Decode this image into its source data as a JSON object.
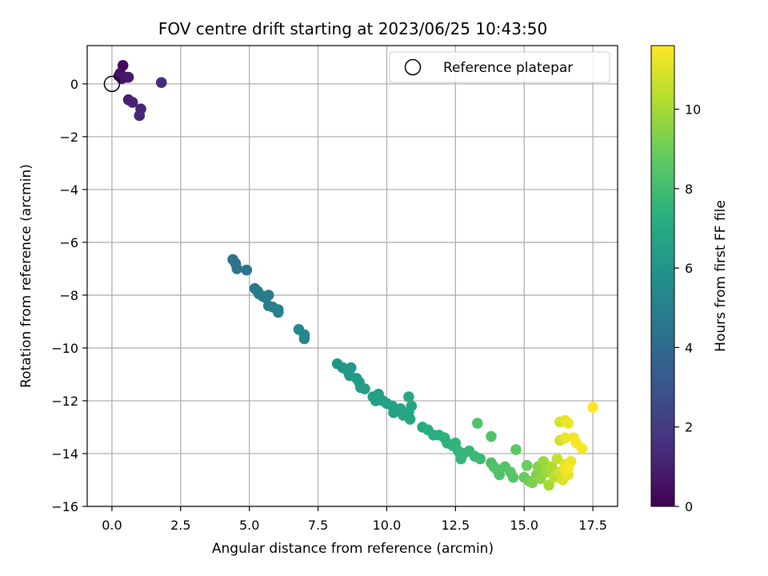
{
  "chart_data": {
    "type": "scatter",
    "title": "FOV centre drift starting at 2023/06/25 10:43:50",
    "xlabel": "Angular distance from reference (arcmin)",
    "ylabel": "Rotation from reference (arcmin)",
    "xlim": [
      -0.9,
      18.4
    ],
    "ylim": [
      -16,
      1.45
    ],
    "xticks": [
      0.0,
      2.5,
      5.0,
      7.5,
      10.0,
      12.5,
      15.0,
      17.5
    ],
    "xtick_labels": [
      "0.0",
      "2.5",
      "5.0",
      "7.5",
      "10.0",
      "12.5",
      "15.0",
      "17.5"
    ],
    "yticks": [
      0,
      -2,
      -4,
      -6,
      -8,
      -10,
      -12,
      -14,
      -16
    ],
    "ytick_labels": [
      "0",
      "−2",
      "−4",
      "−6",
      "−8",
      "−10",
      "−12",
      "−14",
      "−16"
    ],
    "grid": true,
    "legend": {
      "placement": "top-right",
      "entries": [
        "Reference platepar"
      ]
    },
    "reference_point": {
      "x": 0.0,
      "y": 0.0
    },
    "colorbar": {
      "label": "Hours from first FF file",
      "colormap": "viridis",
      "range": [
        0,
        11.6
      ],
      "ticks": [
        0,
        2,
        4,
        6,
        8,
        10
      ],
      "tick_labels": [
        "0",
        "2",
        "4",
        "6",
        "8",
        "10"
      ]
    },
    "points": [
      {
        "x": 0.4,
        "y": 0.7,
        "t": 0.3
      },
      {
        "x": 0.3,
        "y": 0.4,
        "t": 0.4
      },
      {
        "x": 0.25,
        "y": 0.3,
        "t": 0.5
      },
      {
        "x": 0.5,
        "y": 0.25,
        "t": 0.6
      },
      {
        "x": 0.35,
        "y": 0.2,
        "t": 0.7
      },
      {
        "x": 0.6,
        "y": 0.25,
        "t": 0.8
      },
      {
        "x": 0.6,
        "y": -0.6,
        "t": 1.0
      },
      {
        "x": 0.75,
        "y": -0.7,
        "t": 1.1
      },
      {
        "x": 1.05,
        "y": -0.95,
        "t": 1.2
      },
      {
        "x": 1.0,
        "y": -1.2,
        "t": 1.3
      },
      {
        "x": 1.8,
        "y": 0.05,
        "t": 1.5
      },
      {
        "x": 4.4,
        "y": -6.65,
        "t": 4.3
      },
      {
        "x": 4.5,
        "y": -6.8,
        "t": 4.35
      },
      {
        "x": 4.55,
        "y": -7.0,
        "t": 4.4
      },
      {
        "x": 4.9,
        "y": -7.05,
        "t": 4.5
      },
      {
        "x": 5.2,
        "y": -7.75,
        "t": 4.6
      },
      {
        "x": 5.3,
        "y": -7.85,
        "t": 4.65
      },
      {
        "x": 5.35,
        "y": -7.95,
        "t": 4.7
      },
      {
        "x": 5.5,
        "y": -8.05,
        "t": 4.75
      },
      {
        "x": 5.6,
        "y": -8.1,
        "t": 4.8
      },
      {
        "x": 5.7,
        "y": -8.0,
        "t": 4.85
      },
      {
        "x": 5.7,
        "y": -8.4,
        "t": 4.9
      },
      {
        "x": 5.85,
        "y": -8.45,
        "t": 4.95
      },
      {
        "x": 6.05,
        "y": -8.55,
        "t": 5.0
      },
      {
        "x": 6.05,
        "y": -8.65,
        "t": 5.05
      },
      {
        "x": 6.8,
        "y": -9.3,
        "t": 5.3
      },
      {
        "x": 7.0,
        "y": -9.5,
        "t": 5.35
      },
      {
        "x": 7.0,
        "y": -9.65,
        "t": 5.4
      },
      {
        "x": 8.2,
        "y": -10.6,
        "t": 6.0
      },
      {
        "x": 8.4,
        "y": -10.75,
        "t": 6.05
      },
      {
        "x": 8.6,
        "y": -10.9,
        "t": 6.1
      },
      {
        "x": 8.7,
        "y": -10.75,
        "t": 6.1
      },
      {
        "x": 8.65,
        "y": -11.05,
        "t": 6.15
      },
      {
        "x": 8.9,
        "y": -11.15,
        "t": 6.2
      },
      {
        "x": 9.0,
        "y": -11.3,
        "t": 6.25
      },
      {
        "x": 9.05,
        "y": -11.5,
        "t": 6.3
      },
      {
        "x": 9.2,
        "y": -11.55,
        "t": 6.35
      },
      {
        "x": 9.5,
        "y": -11.85,
        "t": 6.4
      },
      {
        "x": 9.6,
        "y": -12.0,
        "t": 6.45
      },
      {
        "x": 9.7,
        "y": -11.75,
        "t": 6.5
      },
      {
        "x": 9.85,
        "y": -12.0,
        "t": 6.5
      },
      {
        "x": 10.0,
        "y": -12.1,
        "t": 6.55
      },
      {
        "x": 10.2,
        "y": -12.2,
        "t": 6.6
      },
      {
        "x": 10.25,
        "y": -12.45,
        "t": 6.65
      },
      {
        "x": 10.5,
        "y": -12.3,
        "t": 6.7
      },
      {
        "x": 10.6,
        "y": -12.55,
        "t": 6.75
      },
      {
        "x": 10.8,
        "y": -12.45,
        "t": 6.8
      },
      {
        "x": 10.85,
        "y": -12.7,
        "t": 6.85
      },
      {
        "x": 10.9,
        "y": -12.2,
        "t": 6.9
      },
      {
        "x": 10.8,
        "y": -11.85,
        "t": 6.95
      },
      {
        "x": 11.3,
        "y": -13.0,
        "t": 7.1
      },
      {
        "x": 11.5,
        "y": -13.1,
        "t": 7.15
      },
      {
        "x": 11.7,
        "y": -13.3,
        "t": 7.2
      },
      {
        "x": 11.9,
        "y": -13.3,
        "t": 7.3
      },
      {
        "x": 12.1,
        "y": -13.4,
        "t": 7.35
      },
      {
        "x": 12.2,
        "y": -13.6,
        "t": 7.4
      },
      {
        "x": 12.4,
        "y": -13.7,
        "t": 7.45
      },
      {
        "x": 12.5,
        "y": -13.6,
        "t": 7.5
      },
      {
        "x": 12.6,
        "y": -13.9,
        "t": 7.55
      },
      {
        "x": 12.8,
        "y": -14.0,
        "t": 7.6
      },
      {
        "x": 12.7,
        "y": -14.2,
        "t": 7.65
      },
      {
        "x": 13.0,
        "y": -13.9,
        "t": 7.7
      },
      {
        "x": 13.2,
        "y": -14.1,
        "t": 7.75
      },
      {
        "x": 13.4,
        "y": -14.2,
        "t": 7.8
      },
      {
        "x": 13.3,
        "y": -12.85,
        "t": 8.3
      },
      {
        "x": 13.8,
        "y": -13.35,
        "t": 8.35
      },
      {
        "x": 13.8,
        "y": -14.35,
        "t": 8.2
      },
      {
        "x": 13.9,
        "y": -14.5,
        "t": 8.25
      },
      {
        "x": 14.0,
        "y": -14.6,
        "t": 8.3
      },
      {
        "x": 14.1,
        "y": -14.8,
        "t": 8.35
      },
      {
        "x": 14.3,
        "y": -14.5,
        "t": 8.4
      },
      {
        "x": 14.5,
        "y": -14.7,
        "t": 8.45
      },
      {
        "x": 14.6,
        "y": -14.9,
        "t": 8.5
      },
      {
        "x": 14.7,
        "y": -13.85,
        "t": 8.6
      },
      {
        "x": 15.0,
        "y": -14.9,
        "t": 8.8
      },
      {
        "x": 15.1,
        "y": -14.45,
        "t": 8.9
      },
      {
        "x": 15.2,
        "y": -15.05,
        "t": 9.0
      },
      {
        "x": 15.3,
        "y": -15.1,
        "t": 9.2
      },
      {
        "x": 15.45,
        "y": -14.8,
        "t": 9.3
      },
      {
        "x": 15.5,
        "y": -14.5,
        "t": 9.5
      },
      {
        "x": 15.6,
        "y": -14.95,
        "t": 9.6
      },
      {
        "x": 15.7,
        "y": -14.3,
        "t": 9.8
      },
      {
        "x": 15.8,
        "y": -14.7,
        "t": 9.9
      },
      {
        "x": 15.9,
        "y": -15.2,
        "t": 10.0
      },
      {
        "x": 16.0,
        "y": -14.5,
        "t": 10.2
      },
      {
        "x": 16.1,
        "y": -14.9,
        "t": 10.4
      },
      {
        "x": 16.2,
        "y": -14.2,
        "t": 10.6
      },
      {
        "x": 16.3,
        "y": -14.7,
        "t": 10.8
      },
      {
        "x": 16.4,
        "y": -15.0,
        "t": 11.0
      },
      {
        "x": 16.5,
        "y": -14.4,
        "t": 11.1
      },
      {
        "x": 16.6,
        "y": -14.8,
        "t": 11.2
      },
      {
        "x": 16.7,
        "y": -14.3,
        "t": 11.3
      },
      {
        "x": 16.5,
        "y": -14.6,
        "t": 11.4
      },
      {
        "x": 16.6,
        "y": -14.55,
        "t": 11.5
      },
      {
        "x": 16.3,
        "y": -12.8,
        "t": 10.9
      },
      {
        "x": 16.5,
        "y": -12.75,
        "t": 11.2
      },
      {
        "x": 16.6,
        "y": -12.85,
        "t": 11.3
      },
      {
        "x": 16.3,
        "y": -13.5,
        "t": 10.8
      },
      {
        "x": 16.5,
        "y": -13.4,
        "t": 11.3
      },
      {
        "x": 16.8,
        "y": -13.4,
        "t": 11.4
      },
      {
        "x": 16.9,
        "y": -13.6,
        "t": 11.5
      },
      {
        "x": 17.1,
        "y": -13.8,
        "t": 11.5
      },
      {
        "x": 17.5,
        "y": -12.25,
        "t": 11.6
      }
    ]
  }
}
